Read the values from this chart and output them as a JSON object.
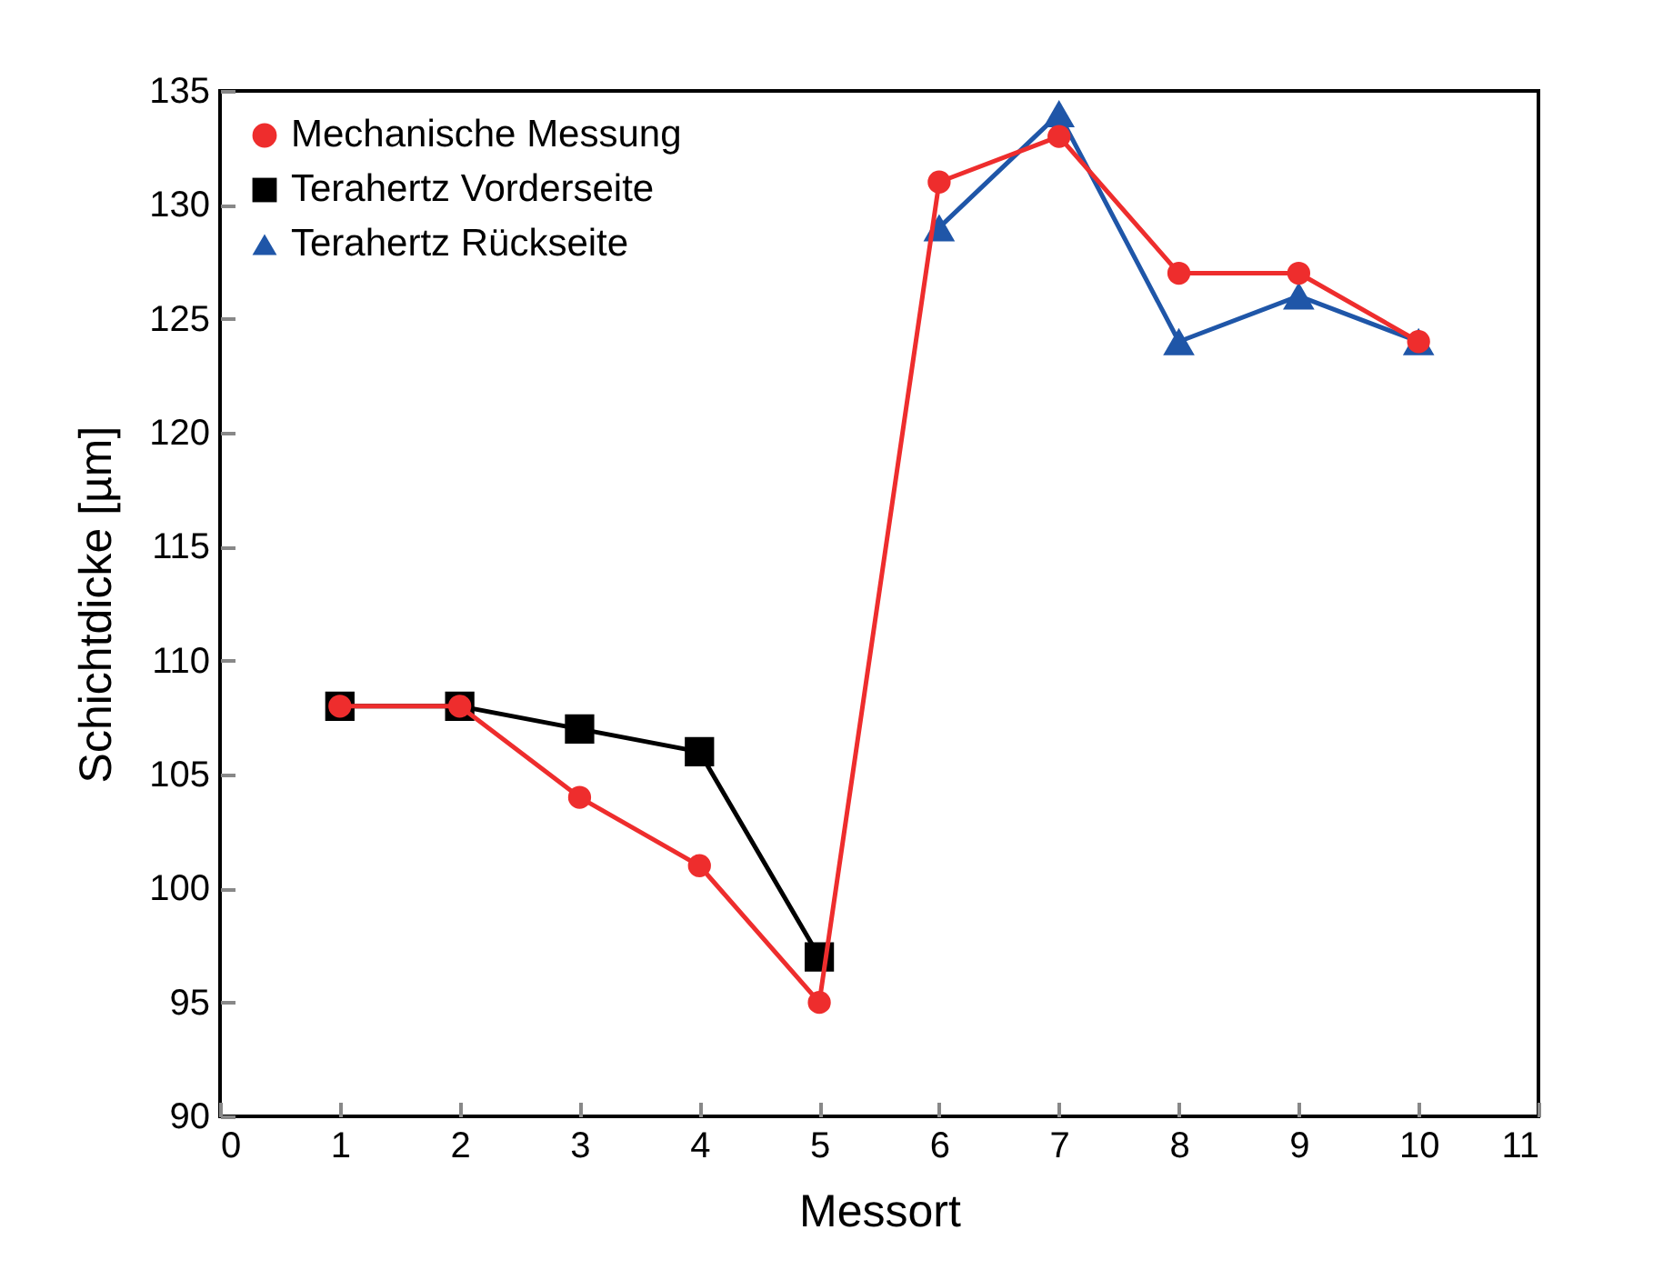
{
  "chart_data": {
    "type": "line",
    "xlabel": "Messort",
    "ylabel": "Schichtdicke [µm]",
    "xlim": [
      0,
      11
    ],
    "xticks": [
      0,
      1,
      2,
      3,
      4,
      5,
      6,
      7,
      8,
      9,
      10,
      11
    ],
    "ylim": [
      90,
      135
    ],
    "yticks": [
      90,
      95,
      100,
      105,
      110,
      115,
      120,
      125,
      130,
      135
    ],
    "grid": false,
    "legend": "top left",
    "series": [
      {
        "name": "Mechanische Messung",
        "color": "#ee2d2d",
        "marker": "circle",
        "x": [
          1,
          2,
          3,
          4,
          5,
          6,
          7,
          8,
          9,
          10
        ],
        "values": [
          108,
          108,
          104,
          101,
          95,
          131,
          133,
          127,
          127,
          124
        ]
      },
      {
        "name": "Terahertz Vorderseite",
        "color": "#000000",
        "marker": "square",
        "x": [
          1,
          2,
          3,
          4,
          5
        ],
        "values": [
          108,
          108,
          107,
          106,
          97
        ]
      },
      {
        "name": "Terahertz Rückseite",
        "color": "#1f56a8",
        "marker": "triangle",
        "x": [
          6,
          7,
          8,
          9,
          10
        ],
        "values": [
          129,
          134,
          124,
          126,
          124
        ]
      }
    ]
  }
}
